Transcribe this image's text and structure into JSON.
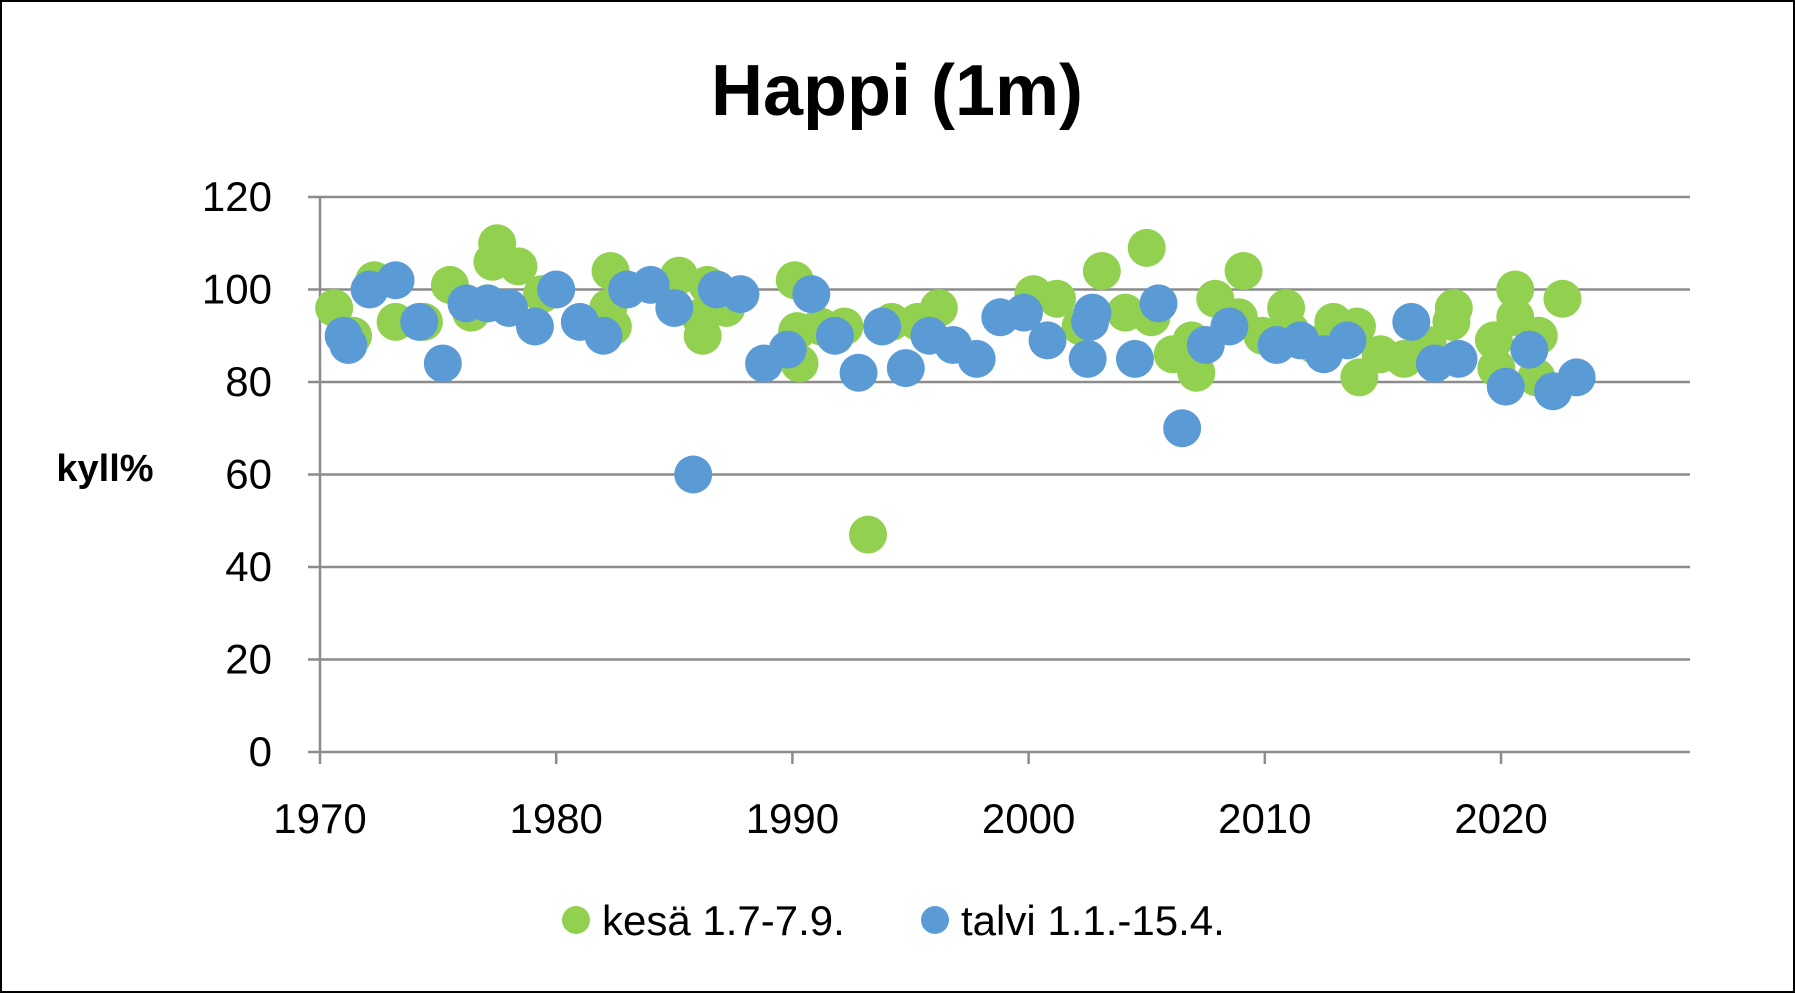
{
  "chart_data": {
    "type": "scatter",
    "title": "Happi (1m)",
    "ylabel": "kyll%",
    "xlabel": "",
    "xlim": [
      1970,
      2028
    ],
    "ylim": [
      0,
      120
    ],
    "x_ticks": [
      "1970",
      "1980",
      "1990",
      "2000",
      "2010",
      "2020"
    ],
    "y_ticks": [
      "0",
      "20",
      "40",
      "60",
      "80",
      "100",
      "120"
    ],
    "grid": "horizontal",
    "legend_position": "bottom",
    "series": [
      {
        "name": "kesä 1.7-7.9.",
        "color": "#92D050",
        "points": [
          [
            1970.6,
            96
          ],
          [
            1971.4,
            90
          ],
          [
            1972.3,
            102
          ],
          [
            1973.2,
            93
          ],
          [
            1974.4,
            93
          ],
          [
            1975.5,
            101
          ],
          [
            1976.4,
            95
          ],
          [
            1977.1,
            97
          ],
          [
            1977.3,
            106
          ],
          [
            1977.5,
            110
          ],
          [
            1978.4,
            105
          ],
          [
            1979.4,
            99
          ],
          [
            1982.2,
            96
          ],
          [
            1982.4,
            92
          ],
          [
            1982.3,
            104
          ],
          [
            1985.2,
            103
          ],
          [
            1986.1,
            94
          ],
          [
            1986.2,
            90
          ],
          [
            1986.4,
            101
          ],
          [
            1987.2,
            96
          ],
          [
            1990.1,
            102
          ],
          [
            1990.2,
            91
          ],
          [
            1990.3,
            84
          ],
          [
            1991.2,
            92
          ],
          [
            1992.2,
            92
          ],
          [
            1993.2,
            47
          ],
          [
            1994.2,
            93
          ],
          [
            1995.3,
            93
          ],
          [
            1996.2,
            96
          ],
          [
            2000.2,
            99
          ],
          [
            2001.2,
            98
          ],
          [
            2002.2,
            92
          ],
          [
            2003.1,
            104
          ],
          [
            2004.1,
            95
          ],
          [
            2005.0,
            109
          ],
          [
            2005.2,
            94
          ],
          [
            2006.1,
            86
          ],
          [
            2006.9,
            89
          ],
          [
            2007.1,
            82
          ],
          [
            2007.9,
            98
          ],
          [
            2008.9,
            94
          ],
          [
            2009.1,
            104
          ],
          [
            2009.9,
            90
          ],
          [
            2010.9,
            96
          ],
          [
            2011.1,
            91
          ],
          [
            2012.1,
            88
          ],
          [
            2012.9,
            93
          ],
          [
            2013.9,
            92
          ],
          [
            2014.0,
            81
          ],
          [
            2014.9,
            86
          ],
          [
            2015.9,
            85
          ],
          [
            2016.9,
            88
          ],
          [
            2017.9,
            93
          ],
          [
            2018.0,
            96
          ],
          [
            2019.7,
            89
          ],
          [
            2019.8,
            83
          ],
          [
            2020.6,
            94
          ],
          [
            2020.6,
            100
          ],
          [
            2021.5,
            81
          ],
          [
            2021.6,
            90
          ],
          [
            2022.6,
            98
          ]
        ]
      },
      {
        "name": "talvi 1.1.-15.4.",
        "color": "#5B9BD5",
        "points": [
          [
            1971.0,
            90
          ],
          [
            1971.2,
            88
          ],
          [
            1972.1,
            100
          ],
          [
            1973.2,
            102
          ],
          [
            1974.2,
            93
          ],
          [
            1975.2,
            84
          ],
          [
            1976.2,
            97
          ],
          [
            1977.1,
            97
          ],
          [
            1978.0,
            96
          ],
          [
            1979.1,
            92
          ],
          [
            1980.0,
            100
          ],
          [
            1981.0,
            93
          ],
          [
            1982.0,
            90
          ],
          [
            1983.0,
            100
          ],
          [
            1984.0,
            101
          ],
          [
            1985.0,
            96
          ],
          [
            1985.8,
            60
          ],
          [
            1986.8,
            100
          ],
          [
            1987.8,
            99
          ],
          [
            1988.8,
            84
          ],
          [
            1989.8,
            87
          ],
          [
            1990.8,
            99
          ],
          [
            1991.8,
            90
          ],
          [
            1992.8,
            82
          ],
          [
            1993.8,
            92
          ],
          [
            1994.8,
            83
          ],
          [
            1995.8,
            90
          ],
          [
            1996.8,
            88
          ],
          [
            1997.8,
            85
          ],
          [
            1998.8,
            94
          ],
          [
            1999.8,
            95
          ],
          [
            2000.8,
            89
          ],
          [
            2002.5,
            85
          ],
          [
            2002.6,
            93
          ],
          [
            2002.7,
            95
          ],
          [
            2004.5,
            85
          ],
          [
            2005.5,
            97
          ],
          [
            2006.5,
            70
          ],
          [
            2007.5,
            88
          ],
          [
            2008.5,
            92
          ],
          [
            2010.5,
            88
          ],
          [
            2011.5,
            89
          ],
          [
            2012.5,
            86
          ],
          [
            2013.5,
            89
          ],
          [
            2016.2,
            93
          ],
          [
            2017.2,
            84
          ],
          [
            2018.2,
            85
          ],
          [
            2020.2,
            79
          ],
          [
            2021.2,
            87
          ],
          [
            2022.2,
            78
          ],
          [
            2023.2,
            81
          ]
        ]
      }
    ]
  }
}
